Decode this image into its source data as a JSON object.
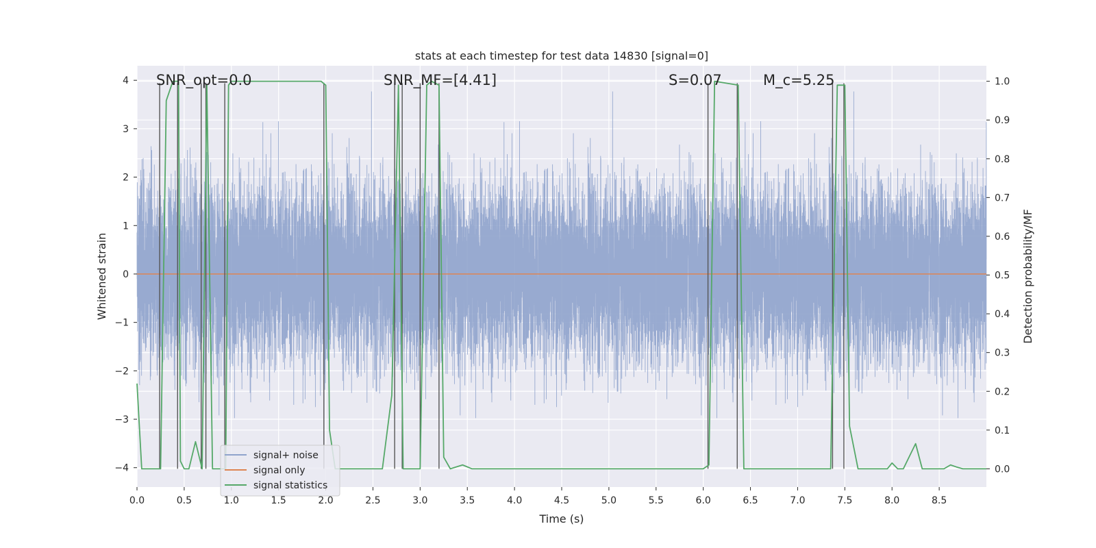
{
  "chart_data": {
    "type": "line",
    "title": "stats at each timestep for test data 14830 [signal=0]",
    "xlabel": "Time (s)",
    "ylabel_left": "Whitened strain",
    "ylabel_right": "Detection probability/MF",
    "xlim": [
      0,
      9.0
    ],
    "ylim_left": [
      -4.4,
      4.3
    ],
    "ylim_right": [
      -0.047,
      1.04
    ],
    "xticks": [
      0.0,
      0.5,
      1.0,
      1.5,
      2.0,
      2.5,
      3.0,
      3.5,
      4.0,
      4.5,
      5.0,
      5.5,
      6.0,
      6.5,
      7.0,
      7.5,
      8.0,
      8.5
    ],
    "xtick_labels": [
      "0.0",
      "0.5",
      "1.0",
      "1.5",
      "2.0",
      "2.5",
      "3.0",
      "3.5",
      "4.0",
      "4.5",
      "5.0",
      "5.5",
      "6.0",
      "6.5",
      "7.0",
      "7.5",
      "8.0",
      "8.5"
    ],
    "yticks_left": [
      -4,
      -3,
      -2,
      -1,
      0,
      1,
      2,
      3,
      4
    ],
    "ytick_labels_left": [
      "−4",
      "−3",
      "−2",
      "−1",
      "0",
      "1",
      "2",
      "3",
      "4"
    ],
    "yticks_right": [
      0.0,
      0.1,
      0.2,
      0.3,
      0.4,
      0.5,
      0.6,
      0.7,
      0.8,
      0.9,
      1.0
    ],
    "ytick_labels_right": [
      "0.0",
      "0.1",
      "0.2",
      "0.3",
      "0.4",
      "0.5",
      "0.6",
      "0.7",
      "0.8",
      "0.9",
      "1.0"
    ],
    "annotations": [
      "SNR_opt=0.0",
      "SNR_MF=[4.41]",
      "S=0.07",
      "M_c=5.25"
    ],
    "legend": {
      "placement": "lower-left",
      "entries": [
        "signal+ noise",
        "signal only",
        "signal statistics"
      ]
    },
    "colors": {
      "background": "#eaeaf2",
      "grid": "#ffffff",
      "noise": "#8fa3cc",
      "signal": "#dd8452",
      "stats": "#55a868",
      "vlines": "#555555"
    },
    "noise_envelope": {
      "sample_rate_hz": 2048,
      "duration_s": 9.0,
      "typical_amplitude": 1.6,
      "peak_amplitude": 4.0
    },
    "series": [
      {
        "name": "signal only",
        "axis": "left",
        "x": [
          0.0,
          9.0
        ],
        "y": [
          0.0,
          0.0
        ]
      },
      {
        "name": "signal statistics",
        "axis": "right",
        "x": [
          0.0,
          0.05,
          0.25,
          0.31,
          0.38,
          0.44,
          0.46,
          0.5,
          0.55,
          0.62,
          0.69,
          0.74,
          0.8,
          0.87,
          0.94,
          0.97,
          1.0,
          1.5,
          1.95,
          2.0,
          2.04,
          2.1,
          2.2,
          2.4,
          2.6,
          2.7,
          2.77,
          2.82,
          2.9,
          3.0,
          3.07,
          3.12,
          3.2,
          3.25,
          3.32,
          3.45,
          3.55,
          4.0,
          5.0,
          6.0,
          6.06,
          6.12,
          6.37,
          6.43,
          6.5,
          7.0,
          7.35,
          7.42,
          7.5,
          7.55,
          7.64,
          7.75,
          7.95,
          8.0,
          8.06,
          8.12,
          8.25,
          8.32,
          8.4,
          8.55,
          8.62,
          8.68,
          8.75,
          9.0
        ],
        "y": [
          0.22,
          0.0,
          0.0,
          0.95,
          1.0,
          1.0,
          0.02,
          0.0,
          0.0,
          0.07,
          0.0,
          0.99,
          0.0,
          0.0,
          0.0,
          0.99,
          1.0,
          1.0,
          1.0,
          0.99,
          0.1,
          0.0,
          0.0,
          0.0,
          0.0,
          0.19,
          0.99,
          0.0,
          0.0,
          0.0,
          0.99,
          1.0,
          0.99,
          0.03,
          0.0,
          0.01,
          0.0,
          0.0,
          0.0,
          0.0,
          0.01,
          1.0,
          0.99,
          0.0,
          0.0,
          0.0,
          0.0,
          0.99,
          0.99,
          0.11,
          0.0,
          0.0,
          0.0,
          0.015,
          0.0,
          0.0,
          0.065,
          0.0,
          0.0,
          0.0,
          0.01,
          0.005,
          0.0,
          0.0
        ]
      }
    ],
    "vertical_lines_x": [
      0.24,
      0.43,
      0.68,
      0.73,
      0.93,
      1.98,
      2.73,
      2.81,
      3.0,
      3.2,
      6.05,
      6.36,
      7.37,
      7.49
    ]
  }
}
